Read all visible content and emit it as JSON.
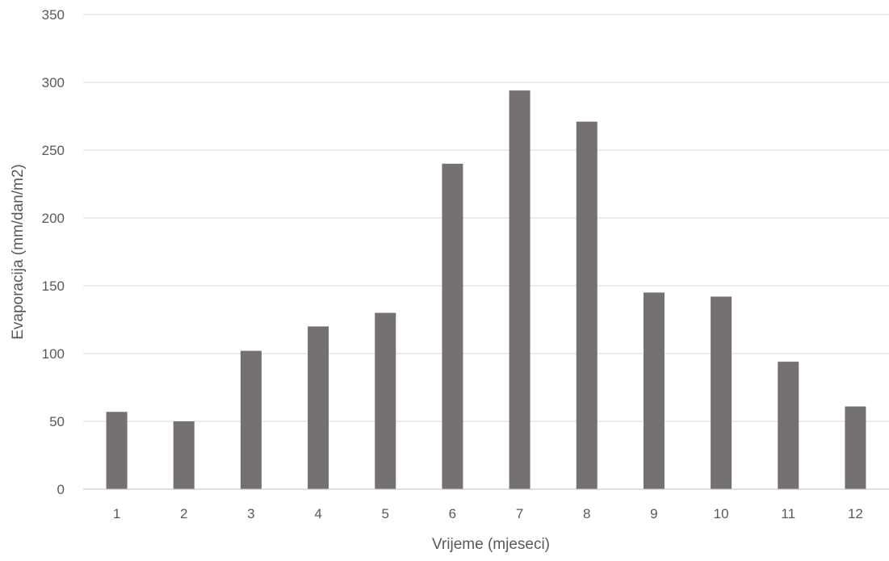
{
  "chart_data": {
    "type": "bar",
    "title": "",
    "xlabel": "Vrijeme (mjeseci)",
    "ylabel": "Evaporacija (mm/dan/m2)",
    "categories": [
      "1",
      "2",
      "3",
      "4",
      "5",
      "6",
      "7",
      "8",
      "9",
      "10",
      "11",
      "12"
    ],
    "values": [
      57,
      50,
      102,
      120,
      130,
      240,
      294,
      271,
      145,
      142,
      94,
      61
    ],
    "ylim": [
      0,
      350
    ],
    "yticks": [
      0,
      50,
      100,
      150,
      200,
      250,
      300,
      350
    ],
    "grid": true,
    "legend": "none",
    "colors": {
      "bar": "#767171",
      "grid": "#d9d9d9",
      "axis": "#bfbfbf",
      "text": "#595959"
    }
  }
}
